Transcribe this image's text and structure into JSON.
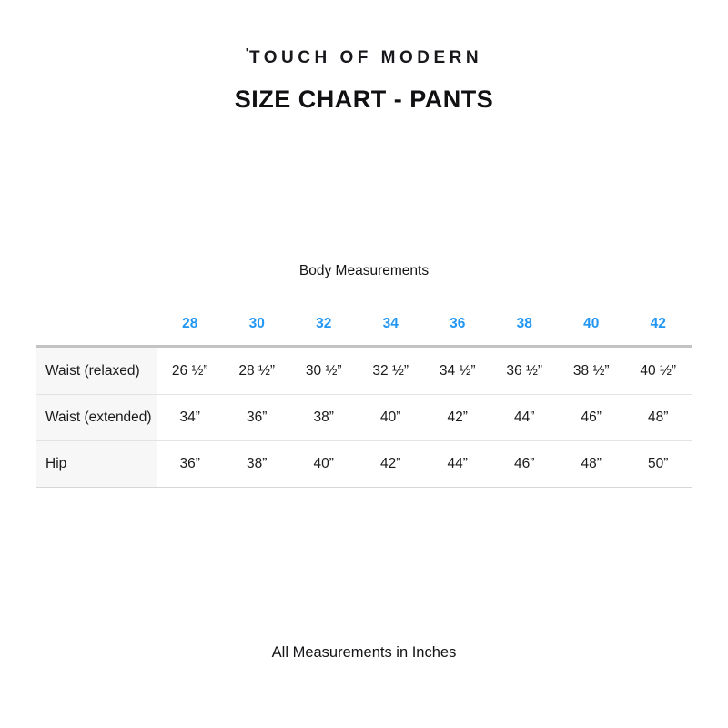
{
  "page": {
    "brand_tick": "'",
    "brand": "TOUCH OF MODERN",
    "title": "SIZE CHART - PANTS",
    "section_label": "Body Measurements",
    "footer_note": "All Measurements in Inches"
  },
  "colors": {
    "size_header_blue": "#2196F3",
    "label_cell_bg": "#f7f7f7",
    "table_top_border": "#c3c3c3",
    "row_separator": "#e3e3e3",
    "text": "#1a1a1d"
  },
  "chart_data": {
    "type": "table",
    "title": "Body Measurements",
    "unit_note": "All Measurements in Inches",
    "columns": [
      "28",
      "30",
      "32",
      "34",
      "36",
      "38",
      "40",
      "42"
    ],
    "rows": [
      {
        "label": "Waist (relaxed)",
        "values": [
          "26 ½”",
          "28 ½”",
          "30 ½”",
          "32 ½”",
          "34 ½”",
          "36 ½”",
          "38 ½”",
          "40 ½”"
        ]
      },
      {
        "label": "Waist (extended)",
        "values": [
          "34”",
          "36”",
          "38”",
          "40”",
          "42”",
          "44”",
          "46”",
          "48”"
        ]
      },
      {
        "label": "Hip",
        "values": [
          "36”",
          "38”",
          "40”",
          "42”",
          "44”",
          "46”",
          "48”",
          "50”"
        ]
      }
    ]
  }
}
